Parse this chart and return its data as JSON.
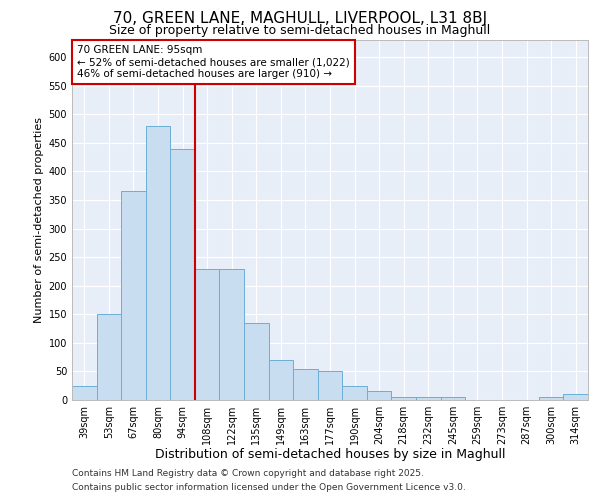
{
  "title1": "70, GREEN LANE, MAGHULL, LIVERPOOL, L31 8BJ",
  "title2": "Size of property relative to semi-detached houses in Maghull",
  "xlabel": "Distribution of semi-detached houses by size in Maghull",
  "ylabel": "Number of semi-detached properties",
  "categories": [
    "39sqm",
    "53sqm",
    "67sqm",
    "80sqm",
    "94sqm",
    "108sqm",
    "122sqm",
    "135sqm",
    "149sqm",
    "163sqm",
    "177sqm",
    "190sqm",
    "204sqm",
    "218sqm",
    "232sqm",
    "245sqm",
    "259sqm",
    "273sqm",
    "287sqm",
    "300sqm",
    "314sqm"
  ],
  "values": [
    25,
    150,
    365,
    480,
    440,
    230,
    230,
    135,
    70,
    55,
    50,
    25,
    15,
    5,
    5,
    5,
    0,
    0,
    0,
    5,
    10
  ],
  "bar_color": "#c9ddf0",
  "bar_edge_color": "#6baed6",
  "vline_x": 4.5,
  "vline_color": "#cc0000",
  "annotation_box_text": "70 GREEN LANE: 95sqm\n← 52% of semi-detached houses are smaller (1,022)\n46% of semi-detached houses are larger (910) →",
  "annotation_box_color": "#cc0000",
  "ylim": [
    0,
    630
  ],
  "yticks": [
    0,
    50,
    100,
    150,
    200,
    250,
    300,
    350,
    400,
    450,
    500,
    550,
    600
  ],
  "background_color": "#e8eef8",
  "footnote1": "Contains HM Land Registry data © Crown copyright and database right 2025.",
  "footnote2": "Contains public sector information licensed under the Open Government Licence v3.0.",
  "title1_fontsize": 11,
  "title2_fontsize": 9,
  "xlabel_fontsize": 9,
  "ylabel_fontsize": 8,
  "tick_fontsize": 7,
  "annotation_fontsize": 7.5,
  "footnote_fontsize": 6.5
}
